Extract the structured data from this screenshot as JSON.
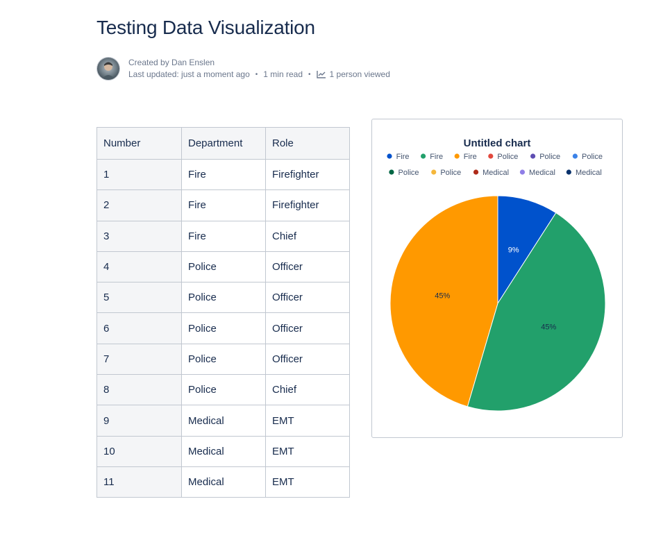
{
  "page": {
    "title": "Testing Data Visualization"
  },
  "byline": {
    "created_by": "Created by Dan Enslen",
    "last_updated": "Last updated: just a moment ago",
    "read_time": "1 min read",
    "views": "1 person viewed",
    "separator": "•"
  },
  "table": {
    "headers": [
      "Number",
      "Department",
      "Role"
    ],
    "rows": [
      [
        "1",
        "Fire",
        "Firefighter"
      ],
      [
        "2",
        "Fire",
        "Firefighter"
      ],
      [
        "3",
        "Fire",
        "Chief"
      ],
      [
        "4",
        "Police",
        "Officer"
      ],
      [
        "5",
        "Police",
        "Officer"
      ],
      [
        "6",
        "Police",
        "Officer"
      ],
      [
        "7",
        "Police",
        "Officer"
      ],
      [
        "8",
        "Police",
        "Chief"
      ],
      [
        "9",
        "Medical",
        "EMT"
      ],
      [
        "10",
        "Medical",
        "EMT"
      ],
      [
        "11",
        "Medical",
        "EMT"
      ]
    ]
  },
  "chart_data": {
    "type": "pie",
    "title": "Untitled chart",
    "legend": {
      "placement": "top",
      "entries": [
        {
          "label": "Fire",
          "color": "#0052cc"
        },
        {
          "label": "Fire",
          "color": "#22a06b"
        },
        {
          "label": "Fire",
          "color": "#ff9900"
        },
        {
          "label": "Police",
          "color": "#e2483d"
        },
        {
          "label": "Police",
          "color": "#5e4db2"
        },
        {
          "label": "Police",
          "color": "#3b82e8"
        },
        {
          "label": "Police",
          "color": "#006644"
        },
        {
          "label": "Police",
          "color": "#f5b73b"
        },
        {
          "label": "Medical",
          "color": "#ae2a19"
        },
        {
          "label": "Medical",
          "color": "#8f7ee7"
        },
        {
          "label": "Medical",
          "color": "#09326c"
        }
      ]
    },
    "slices": [
      {
        "label": "Fire",
        "value": 1,
        "percent_label": "9%",
        "color": "#0052cc",
        "label_color": "#ffffff"
      },
      {
        "label": "Fire",
        "value": 5,
        "percent_label": "45%",
        "color": "#22a06b",
        "label_color": "#172b4d"
      },
      {
        "label": "Fire",
        "value": 5,
        "percent_label": "45%",
        "color": "#ff9900",
        "label_color": "#172b4d"
      }
    ]
  }
}
